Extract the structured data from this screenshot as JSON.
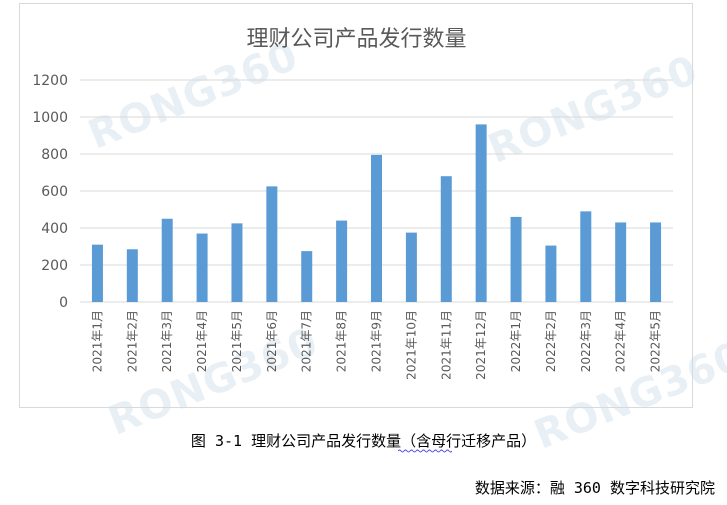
{
  "colors": {
    "bar": "#5b9bd5",
    "grid": "#d9d9d9",
    "text": "#595959"
  },
  "watermark": {
    "text": "RONG360"
  },
  "caption": "图 3-1 理财公司产品发行数量（含母行迁移产品）",
  "source": "数据来源：融 360 数字科技研究院",
  "chart_data": {
    "type": "bar",
    "title": "理财公司产品发行数量",
    "xlabel": "",
    "ylabel": "",
    "ylim": [
      0,
      1200
    ],
    "yticks": [
      "0",
      "200",
      "400",
      "600",
      "800",
      "1000",
      "1200"
    ],
    "grid": true,
    "legend": "none",
    "categories": [
      "2021年1月",
      "2021年2月",
      "2021年3月",
      "2021年4月",
      "2021年5月",
      "2021年6月",
      "2021年7月",
      "2021年8月",
      "2021年9月",
      "2021年10月",
      "2021年11月",
      "2021年12月",
      "2022年1月",
      "2022年2月",
      "2022年3月",
      "2022年4月",
      "2022年5月"
    ],
    "values": [
      310,
      285,
      450,
      370,
      425,
      625,
      275,
      440,
      795,
      375,
      680,
      960,
      460,
      305,
      490,
      430,
      430
    ]
  }
}
